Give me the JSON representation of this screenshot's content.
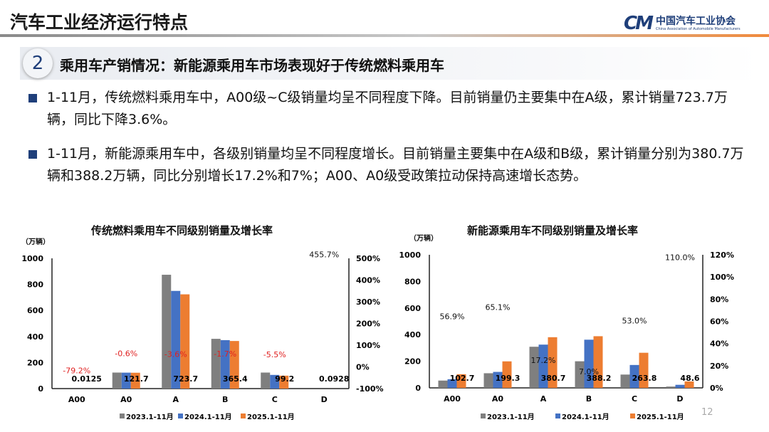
{
  "header": {
    "title": "汽车工业经济运行特点",
    "logo_cn": "中国汽车工业协会",
    "logo_en": "China Association of Automobile Manufacturers",
    "logo_mark": "CM"
  },
  "section": {
    "number": "2",
    "title": "乘用车产销情况：新能源乘用车市场表现好于传统燃料乘用车"
  },
  "bullets": [
    "1-11月，传统燃料乘用车中，A00级~C级销量均呈不同程度下降。目前销量仍主要集中在A级，累计销量723.7万辆，同比下降3.6%。",
    "1-11月，新能源乘用车中，各级别销量均呈不同程度增长。目前销量主要集中在A级和B级，累计销量分别为380.7万辆和388.2万辆，同比分别增长17.2%和7%；A00、A0级受政策拉动保持高速增长态势。"
  ],
  "page_number": "12",
  "colors": {
    "s2023": "#7f7f7f",
    "s2024": "#4472c4",
    "s2025": "#ed7d31",
    "rate_negative": "#e02020",
    "rate_positive": "#111111",
    "accent": "#1f3f7a"
  },
  "chart_data": [
    {
      "type": "bar",
      "title": "传统燃料乘用车不同级别销量及增长率",
      "ylabel": "（万辆）",
      "ylim": [
        0,
        1000
      ],
      "yticks": [
        "0",
        "200",
        "400",
        "600",
        "800",
        "1000"
      ],
      "y2lim": [
        -100,
        500
      ],
      "y2ticks": [
        "-100%",
        "0%",
        "100%",
        "200%",
        "300%",
        "400%",
        "500%"
      ],
      "categories": [
        "A00",
        "A0",
        "A",
        "B",
        "C",
        "D"
      ],
      "series": [
        {
          "name": "2023.1-11月",
          "values": [
            0.06,
            123,
            874,
            382,
            123,
            0.02
          ]
        },
        {
          "name": "2024.1-11月",
          "values": [
            0.06,
            122.4,
            750,
            372,
            105,
            0.02
          ]
        },
        {
          "name": "2025.1-11月",
          "values": [
            0.0125,
            121.7,
            723.7,
            365.4,
            99.2,
            0.0928
          ]
        }
      ],
      "value_labels": [
        "0.0125",
        "121.7",
        "723.7",
        "365.4",
        "99.2",
        "0.0928"
      ],
      "growth": [
        -79.2,
        -0.6,
        -3.6,
        -1.7,
        -5.5,
        455.7
      ],
      "growth_labels": [
        "-79.2%",
        "-0.6%",
        "-3.6%",
        "-1.7%",
        "-5.5%",
        "455.7%"
      ],
      "legend": "bottom"
    },
    {
      "type": "bar",
      "title": "新能源乘用车不同级别销量及增长率",
      "ylabel": "（万辆）",
      "ylim": [
        0,
        1000
      ],
      "yticks": [
        "0",
        "200",
        "400",
        "600",
        "800",
        "1000"
      ],
      "y2lim": [
        0,
        120
      ],
      "y2ticks": [
        "0%",
        "20%",
        "40%",
        "60%",
        "80%",
        "100%",
        "120%"
      ],
      "categories": [
        "A00",
        "A0",
        "A",
        "B",
        "C",
        "D"
      ],
      "series": [
        {
          "name": "2023.1-11月",
          "values": [
            55,
            110,
            309,
            200,
            100,
            10
          ]
        },
        {
          "name": "2024.1-11月",
          "values": [
            65,
            120,
            325,
            362,
            172,
            23
          ]
        },
        {
          "name": "2025.1-11月",
          "values": [
            102.7,
            199.3,
            380.7,
            388.2,
            263.8,
            48.6
          ]
        }
      ],
      "value_labels": [
        "102.7",
        "199.3",
        "380.7",
        "388.2",
        "263.8",
        "48.6"
      ],
      "growth": [
        56.9,
        65.1,
        17.2,
        7.0,
        53.0,
        110.0
      ],
      "growth_labels": [
        "56.9%",
        "65.1%",
        "17.2%",
        "7.0%",
        "53.0%",
        "110.0%"
      ],
      "legend": "bottom"
    }
  ]
}
